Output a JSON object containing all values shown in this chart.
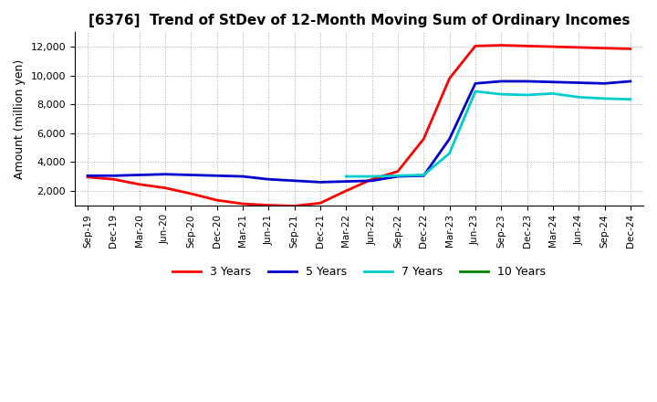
{
  "title": "[6376]  Trend of StDev of 12-Month Moving Sum of Ordinary Incomes",
  "ylabel": "Amount (million yen)",
  "ylim": [
    1000,
    13000
  ],
  "yticks": [
    2000,
    4000,
    6000,
    8000,
    10000,
    12000
  ],
  "background_color": "#ffffff",
  "grid_color": "#aaaaaa",
  "series": {
    "3 Years": {
      "color": "#ff0000",
      "data": [
        [
          "Sep-19",
          2950
        ],
        [
          "Dec-19",
          2800
        ],
        [
          "Mar-20",
          2450
        ],
        [
          "Jun-20",
          2200
        ],
        [
          "Sep-20",
          1800
        ],
        [
          "Dec-20",
          1350
        ],
        [
          "Mar-21",
          1100
        ],
        [
          "Jun-21",
          1000
        ],
        [
          "Sep-21",
          950
        ],
        [
          "Dec-21",
          1150
        ],
        [
          "Mar-22",
          2000
        ],
        [
          "Jun-22",
          2800
        ],
        [
          "Sep-22",
          3350
        ],
        [
          "Dec-22",
          5600
        ],
        [
          "Mar-23",
          9800
        ],
        [
          "Jun-23",
          12050
        ],
        [
          "Sep-23",
          12100
        ],
        [
          "Dec-23",
          12050
        ],
        [
          "Mar-24",
          12000
        ],
        [
          "Jun-24",
          11950
        ],
        [
          "Sep-24",
          11900
        ],
        [
          "Dec-24",
          11850
        ]
      ]
    },
    "5 Years": {
      "color": "#0000cc",
      "data": [
        [
          "Sep-19",
          3050
        ],
        [
          "Dec-19",
          3050
        ],
        [
          "Mar-20",
          3100
        ],
        [
          "Jun-20",
          3150
        ],
        [
          "Sep-20",
          3100
        ],
        [
          "Dec-20",
          3050
        ],
        [
          "Mar-21",
          3000
        ],
        [
          "Jun-21",
          2800
        ],
        [
          "Sep-21",
          2700
        ],
        [
          "Dec-21",
          2600
        ],
        [
          "Mar-22",
          2650
        ],
        [
          "Jun-22",
          2700
        ],
        [
          "Sep-22",
          3000
        ],
        [
          "Dec-22",
          3050
        ],
        [
          "Mar-23",
          5600
        ],
        [
          "Jun-23",
          9450
        ],
        [
          "Sep-23",
          9600
        ],
        [
          "Dec-23",
          9600
        ],
        [
          "Mar-24",
          9550
        ],
        [
          "Jun-24",
          9500
        ],
        [
          "Sep-24",
          9450
        ],
        [
          "Dec-24",
          9600
        ]
      ]
    },
    "7 Years": {
      "color": "#00cccc",
      "data": [
        [
          "Mar-22",
          3000
        ],
        [
          "Jun-22",
          3000
        ],
        [
          "Sep-22",
          3050
        ],
        [
          "Dec-22",
          3100
        ],
        [
          "Mar-23",
          4600
        ],
        [
          "Jun-23",
          8900
        ],
        [
          "Sep-23",
          8700
        ],
        [
          "Dec-23",
          8650
        ],
        [
          "Mar-24",
          8750
        ],
        [
          "Jun-24",
          8500
        ],
        [
          "Sep-24",
          8400
        ],
        [
          "Dec-24",
          8350
        ]
      ]
    },
    "10 Years": {
      "color": "#008000",
      "data": []
    }
  },
  "x_labels": [
    "Sep-19",
    "Dec-19",
    "Mar-20",
    "Jun-20",
    "Sep-20",
    "Dec-20",
    "Mar-21",
    "Jun-21",
    "Sep-21",
    "Dec-21",
    "Mar-22",
    "Jun-22",
    "Sep-22",
    "Dec-22",
    "Mar-23",
    "Jun-23",
    "Sep-23",
    "Dec-23",
    "Mar-24",
    "Jun-24",
    "Sep-24",
    "Dec-24"
  ],
  "legend_labels": [
    "3 Years",
    "5 Years",
    "7 Years",
    "10 Years"
  ],
  "legend_colors": [
    "#ff0000",
    "#0000cc",
    "#00cccc",
    "#008000"
  ],
  "title_fontsize": 11,
  "ylabel_fontsize": 9,
  "tick_fontsize": 8,
  "xtick_fontsize": 7.5,
  "legend_fontsize": 9
}
